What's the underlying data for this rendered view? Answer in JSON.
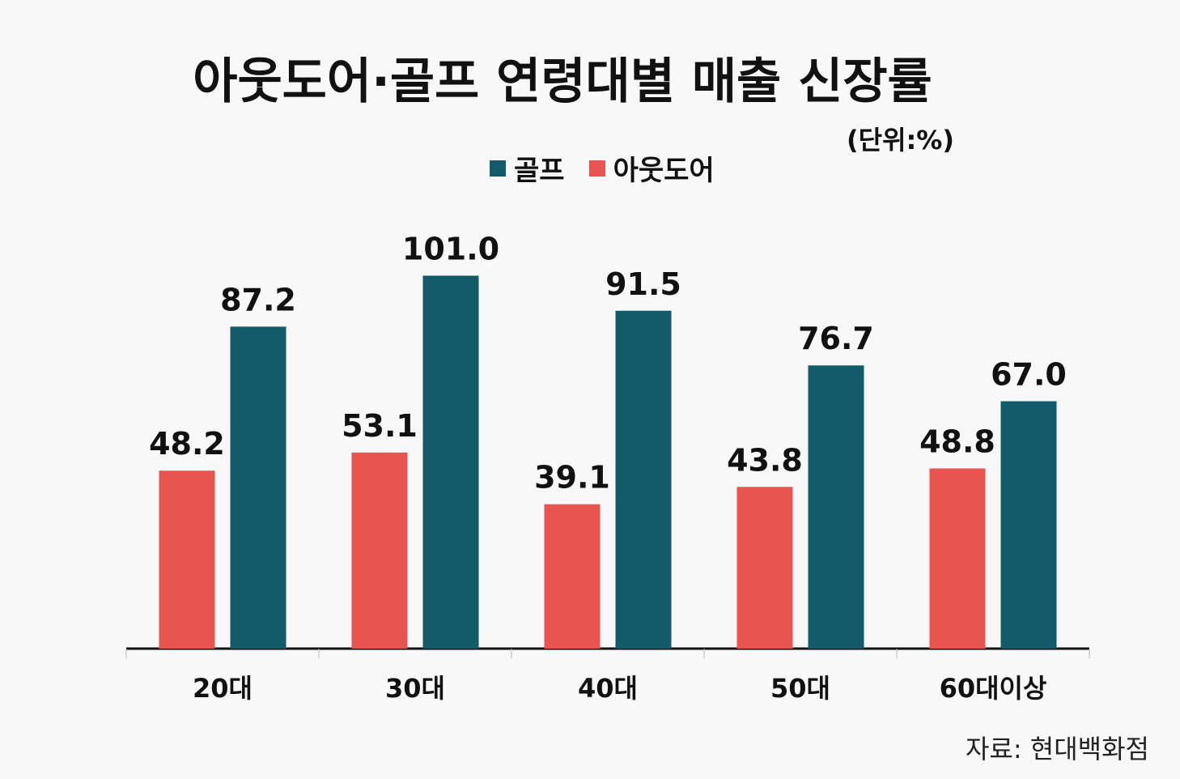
{
  "title": "아웃도어·골프 연령대별 매출 신장률",
  "unit": "(단위:%)",
  "source": "자료: 현대백화점",
  "legend": [
    {
      "name": "골프",
      "color": "#135b69"
    },
    {
      "name": "아웃도어",
      "color": "#e85450"
    }
  ],
  "chart_data": {
    "type": "bar",
    "title": "아웃도어·골프 연령대별 매출 신장률",
    "xlabel": "",
    "ylabel": "",
    "ylim": [
      0,
      115
    ],
    "grid": false,
    "legend_position": "top",
    "categories": [
      "20대",
      "30대",
      "40대",
      "50대",
      "60대이상"
    ],
    "series": [
      {
        "name": "아웃도어",
        "color": "#e85450",
        "values": [
          48.2,
          53.1,
          39.1,
          43.8,
          48.8
        ]
      },
      {
        "name": "골프",
        "color": "#135b69",
        "values": [
          87.2,
          101.0,
          91.5,
          76.7,
          67.0
        ]
      }
    ]
  }
}
